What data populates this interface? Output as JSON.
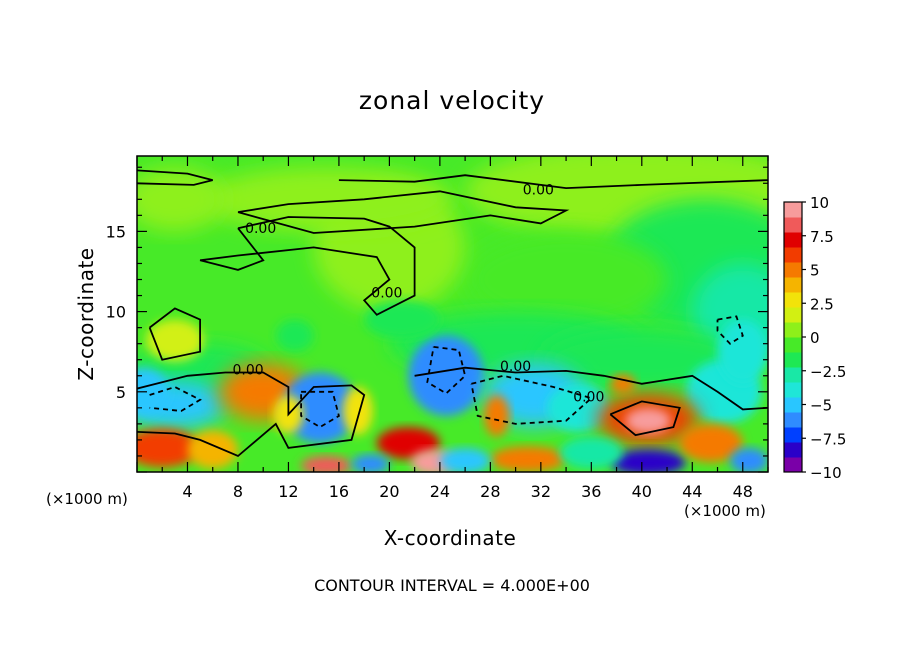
{
  "chart_data": {
    "type": "heatmap",
    "title": "zonal velocity",
    "xlabel": "X-coordinate",
    "ylabel": "Z-coordinate",
    "x_unit_label": "(×1000 m)",
    "x_ticks": [
      4,
      8,
      12,
      16,
      20,
      24,
      28,
      32,
      36,
      40,
      44,
      48
    ],
    "y_ticks": [
      5,
      10,
      15
    ],
    "xlim": [
      0,
      50
    ],
    "ylim": [
      0,
      19.7
    ],
    "colorbar": {
      "ticks": [
        "10",
        "7.5",
        "5",
        "2.5",
        "0",
        "−2.5",
        "−5",
        "−7.5",
        "−10"
      ],
      "range": [
        -10,
        10
      ],
      "colors": [
        "#7a00a8",
        "#2a00c8",
        "#0040ff",
        "#2f8cff",
        "#29c6ff",
        "#1fe6d8",
        "#19e8a6",
        "#1ee854",
        "#47ea28",
        "#8ef01a",
        "#d2f012",
        "#f2e30a",
        "#f5b400",
        "#f57a00",
        "#f23c00",
        "#e00000",
        "#f05a5a",
        "#f79c9c"
      ]
    },
    "contour_interval": "CONTOUR INTERVAL = 4.000E+00",
    "contour_labels": [
      "0.00",
      "0.00",
      "0.00",
      "0.00",
      "0.00",
      "0.00"
    ],
    "features": [
      {
        "x": 40.5,
        "z": 3.2,
        "value": 10
      },
      {
        "x": 23.5,
        "z": 0.5,
        "value": 9
      },
      {
        "x": 15,
        "z": 0.4,
        "value": 8
      },
      {
        "x": 21.5,
        "z": 1.8,
        "value": 7
      },
      {
        "x": 2,
        "z": 1.4,
        "value": 6
      },
      {
        "x": 9.5,
        "z": 5.1,
        "value": 5
      },
      {
        "x": 45,
        "z": 1.8,
        "value": 5
      },
      {
        "x": 31,
        "z": 0.6,
        "value": 6
      },
      {
        "x": 14.5,
        "z": 4.0,
        "value": -7
      },
      {
        "x": 24.5,
        "z": 6.3,
        "value": -7
      },
      {
        "x": 31.5,
        "z": 4.8,
        "value": -6
      },
      {
        "x": 3.5,
        "z": 4.5,
        "value": -5
      },
      {
        "x": 40.5,
        "z": 0.6,
        "value": -9
      },
      {
        "x": 47.5,
        "z": 7.5,
        "value": -4
      },
      {
        "x": 48,
        "z": 11.5,
        "value": -2
      },
      {
        "x": 3,
        "z": 8.2,
        "value": 1
      }
    ]
  }
}
